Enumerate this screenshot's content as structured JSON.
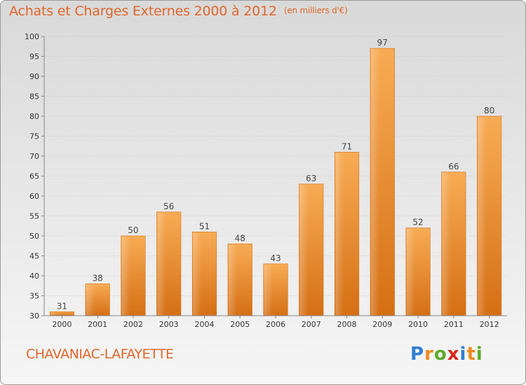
{
  "title": "Achats et Charges Externes 2000 à 2012",
  "unit_note": "(en milliers d'€)",
  "commune": "CHAVANIAC-LAFAYETTE",
  "logo": {
    "text": "Proxiti",
    "letters": [
      "P",
      "r",
      "o",
      "x",
      "i",
      "t",
      "i"
    ],
    "colors": [
      "#2e7fd1",
      "#f08a1c",
      "#5cab2b",
      "#d9261c",
      "#2e7fd1",
      "#f08a1c",
      "#5cab2b"
    ]
  },
  "colors": {
    "bar": "#f0922e",
    "bar_light": "#f8ac55",
    "bar_dark": "#d56f14",
    "text": "#e2662a"
  },
  "chart_data": {
    "type": "bar",
    "categories": [
      "2000",
      "2001",
      "2002",
      "2003",
      "2004",
      "2005",
      "2006",
      "2007",
      "2008",
      "2009",
      "2010",
      "2011",
      "2012"
    ],
    "values": [
      31,
      38,
      50,
      56,
      51,
      48,
      43,
      63,
      71,
      97,
      52,
      66,
      80
    ],
    "ylim": [
      30,
      100
    ],
    "yticks": [
      30,
      35,
      40,
      45,
      50,
      55,
      60,
      65,
      70,
      75,
      80,
      85,
      90,
      95,
      100
    ],
    "grid": true,
    "data_labels": true
  }
}
